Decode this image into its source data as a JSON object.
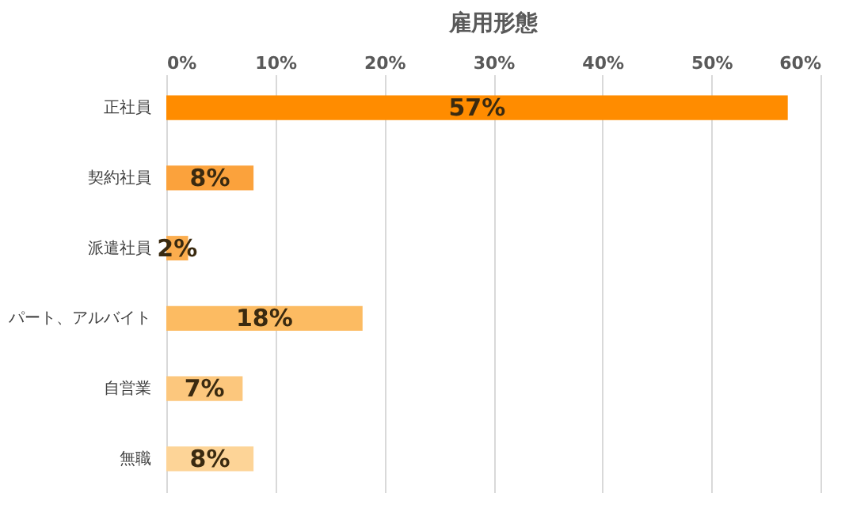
{
  "chart_data": {
    "type": "bar",
    "orientation": "horizontal",
    "title": "雇用形態",
    "categories": [
      "正社員",
      "契約社員",
      "派遣社員",
      "パート、アルバイト",
      "自営業",
      "無職"
    ],
    "values": [
      57,
      8,
      2,
      18,
      7,
      8
    ],
    "value_labels": [
      "57%",
      "8%",
      "2%",
      "18%",
      "7%",
      "8%"
    ],
    "colors": [
      "#ff8c00",
      "#fba23c",
      "#fbad4e",
      "#fcbb62",
      "#fcc77d",
      "#fdd497"
    ],
    "xlim": [
      0,
      60
    ],
    "xticks": [
      {
        "value": 0,
        "label": "0%"
      },
      {
        "value": 10,
        "label": "10%"
      },
      {
        "value": 20,
        "label": "20%"
      },
      {
        "value": 30,
        "label": "30%"
      },
      {
        "value": 40,
        "label": "40%"
      },
      {
        "value": 50,
        "label": "50%"
      },
      {
        "value": 60,
        "label": "60%"
      }
    ],
    "grid": "x",
    "legend": false
  }
}
